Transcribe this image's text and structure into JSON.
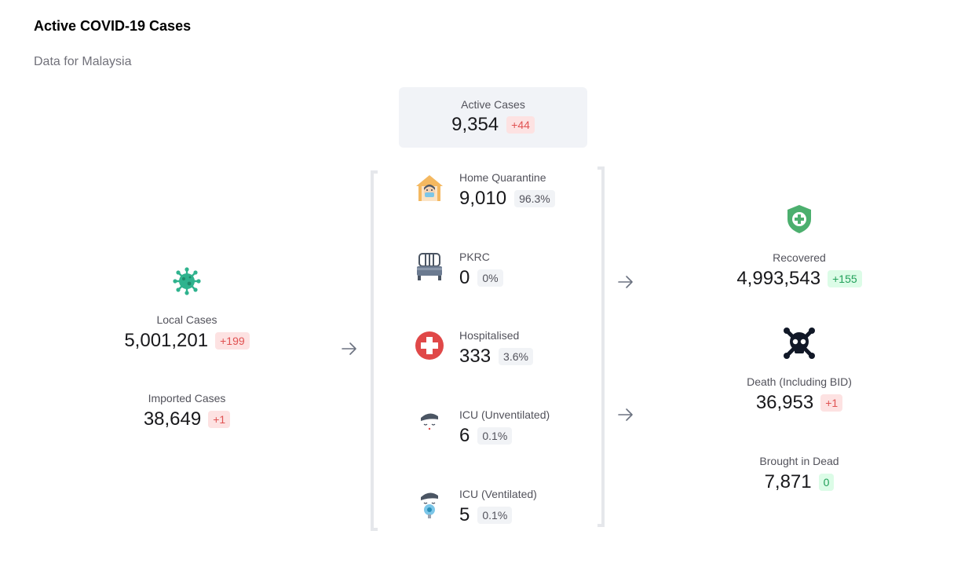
{
  "header": {
    "title": "Active COVID-19 Cases",
    "subtitle": "Data for Malaysia"
  },
  "active": {
    "label": "Active Cases",
    "value": "9,354",
    "delta": "+44"
  },
  "left": {
    "local": {
      "label": "Local Cases",
      "value": "5,001,201",
      "delta": "+199",
      "icon": "virus-icon"
    },
    "imported": {
      "label": "Imported Cases",
      "value": "38,649",
      "delta": "+1"
    }
  },
  "middle": {
    "items": [
      {
        "label": "Home Quarantine",
        "value": "9,010",
        "pct": "96.3%",
        "icon": "home-quarantine-icon"
      },
      {
        "label": "PKRC",
        "value": "0",
        "pct": "0%",
        "icon": "bed-icon"
      },
      {
        "label": "Hospitalised",
        "value": "333",
        "pct": "3.6%",
        "icon": "hospital-cross-icon"
      },
      {
        "label": "ICU (Unventilated)",
        "value": "6",
        "pct": "0.1%",
        "icon": "icu-unventilated-icon"
      },
      {
        "label": "ICU (Ventilated)",
        "value": "5",
        "pct": "0.1%",
        "icon": "icu-ventilated-icon"
      }
    ]
  },
  "right": {
    "recovered": {
      "label": "Recovered",
      "value": "4,993,543",
      "delta": "+155",
      "icon": "shield-plus-icon"
    },
    "death": {
      "label": "Death (Including BID)",
      "value": "36,953",
      "delta": "+1",
      "icon": "skull-crossbones-icon"
    },
    "bid": {
      "label": "Brought in Dead",
      "value": "7,871",
      "delta": "0"
    }
  },
  "colors": {
    "virus": "#2fb38e",
    "recovered": "#4caf6e",
    "hospital": "#e04848",
    "bracket": "#e5e7eb"
  }
}
